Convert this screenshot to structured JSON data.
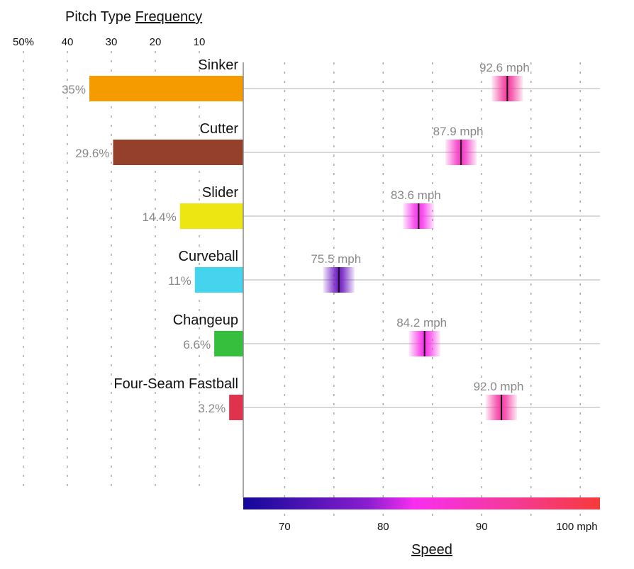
{
  "chart_data": {
    "type": "bar",
    "title_left": "Pitch Type",
    "title_left_underlined": "Frequency",
    "xlabel_speed": "Speed",
    "categories": [
      "Sinker",
      "Cutter",
      "Slider",
      "Curveball",
      "Changeup",
      "Four-Seam Fastball"
    ],
    "frequency": {
      "values": [
        35,
        29.6,
        14.4,
        11,
        6.6,
        3.2
      ],
      "labels": [
        "35%",
        "29.6%",
        "14.4%",
        "11%",
        "6.6%",
        "3.2%"
      ],
      "colors": [
        "#f59b00",
        "#95402b",
        "#eee613",
        "#45d4ee",
        "#36bf3c",
        "#e0314d"
      ],
      "range": [
        0,
        50
      ],
      "ticks": [
        50,
        40,
        30,
        20,
        10
      ],
      "tick_labels": [
        "50%",
        "40",
        "30",
        "20",
        "10"
      ]
    },
    "speed": {
      "values": [
        92.6,
        87.9,
        83.6,
        75.5,
        84.2,
        92.0
      ],
      "labels": [
        "92.6 mph",
        "87.9 mph",
        "83.6 mph",
        "75.5 mph",
        "84.2 mph",
        "92.0 mph"
      ],
      "range": [
        65.8,
        102
      ],
      "ticks": [
        70,
        80,
        90,
        100
      ],
      "tick_labels": [
        "70",
        "80",
        "90",
        "100 mph"
      ],
      "grid": [
        70,
        75,
        80,
        85,
        90,
        95,
        100
      ],
      "colorscale": [
        "#12089a",
        "#8a1ecf",
        "#f82ef0",
        "#f43a9a",
        "#f73a3a"
      ]
    }
  }
}
